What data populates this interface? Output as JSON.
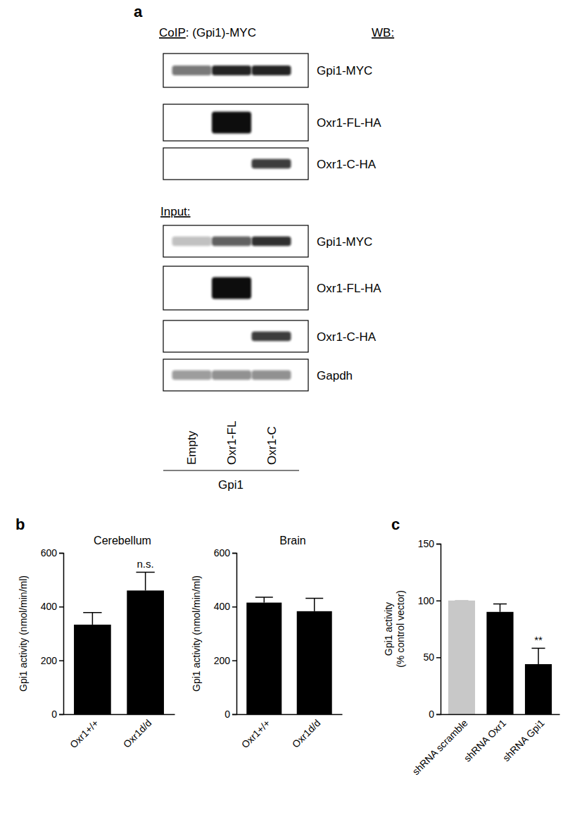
{
  "blot": {
    "panel": "a",
    "coip_prefix": "CoIP",
    "coip_target": ": (Gpi1)-MYC",
    "wb_label": "WB:",
    "input_label": "Input:",
    "lanes": [
      "Empty",
      "Oxr1-FL",
      "Oxr1-C"
    ],
    "lane_group": "Gpi1",
    "coip_rows": [
      {
        "label": "Gpi1-MYC",
        "intensity": [
          0.55,
          0.9,
          0.9
        ]
      },
      {
        "label": "Oxr1-FL-HA",
        "intensity": [
          0,
          1,
          0
        ]
      },
      {
        "label": "Oxr1-C-HA",
        "intensity": [
          0,
          0,
          0.8
        ]
      }
    ],
    "input_rows": [
      {
        "label": "Gpi1-MYC",
        "intensity": [
          0.25,
          0.65,
          0.85
        ]
      },
      {
        "label": "Oxr1-FL-HA",
        "intensity": [
          0,
          1,
          0
        ]
      },
      {
        "label": "Oxr1-C-HA",
        "intensity": [
          0,
          0,
          0.8
        ]
      },
      {
        "label": "Gapdh",
        "intensity": [
          0.4,
          0.45,
          0.45
        ]
      }
    ]
  },
  "chart_data": [
    {
      "type": "bar",
      "panel": "b",
      "title": "Cerebellum",
      "y_label": "Gpi1 activity (nmol/min/ml)",
      "categories": [
        "Oxr1+/+",
        "Oxr1d/d"
      ],
      "values": [
        333,
        460
      ],
      "errors": [
        45,
        68
      ],
      "significance": [
        null,
        "n.s."
      ],
      "color": "#000000",
      "ylim": [
        0,
        600
      ],
      "yticks": [
        0,
        200,
        400,
        600
      ]
    },
    {
      "type": "bar",
      "title": "Brain",
      "y_label": "Gpi1 activity (nmol/min/ml)",
      "categories": [
        "Oxr1+/+",
        "Oxr1d/d"
      ],
      "values": [
        415,
        383
      ],
      "errors": [
        20,
        48
      ],
      "color": "#000000",
      "ylim": [
        0,
        600
      ],
      "yticks": [
        0,
        200,
        400,
        600
      ]
    },
    {
      "type": "bar",
      "panel": "c",
      "y_label": [
        "Gpi1 activity",
        "(% control vector)"
      ],
      "categories": [
        "shRNA scramble",
        "shRNA Oxr1",
        "shRNA Gpi1"
      ],
      "values": [
        100,
        90,
        44
      ],
      "errors": [
        0,
        7,
        14
      ],
      "significance": [
        null,
        null,
        "**"
      ],
      "colors": [
        "#c8c8c8",
        "#000000",
        "#000000"
      ],
      "ylim": [
        0,
        150
      ],
      "yticks": [
        0,
        50,
        100,
        150
      ]
    }
  ]
}
